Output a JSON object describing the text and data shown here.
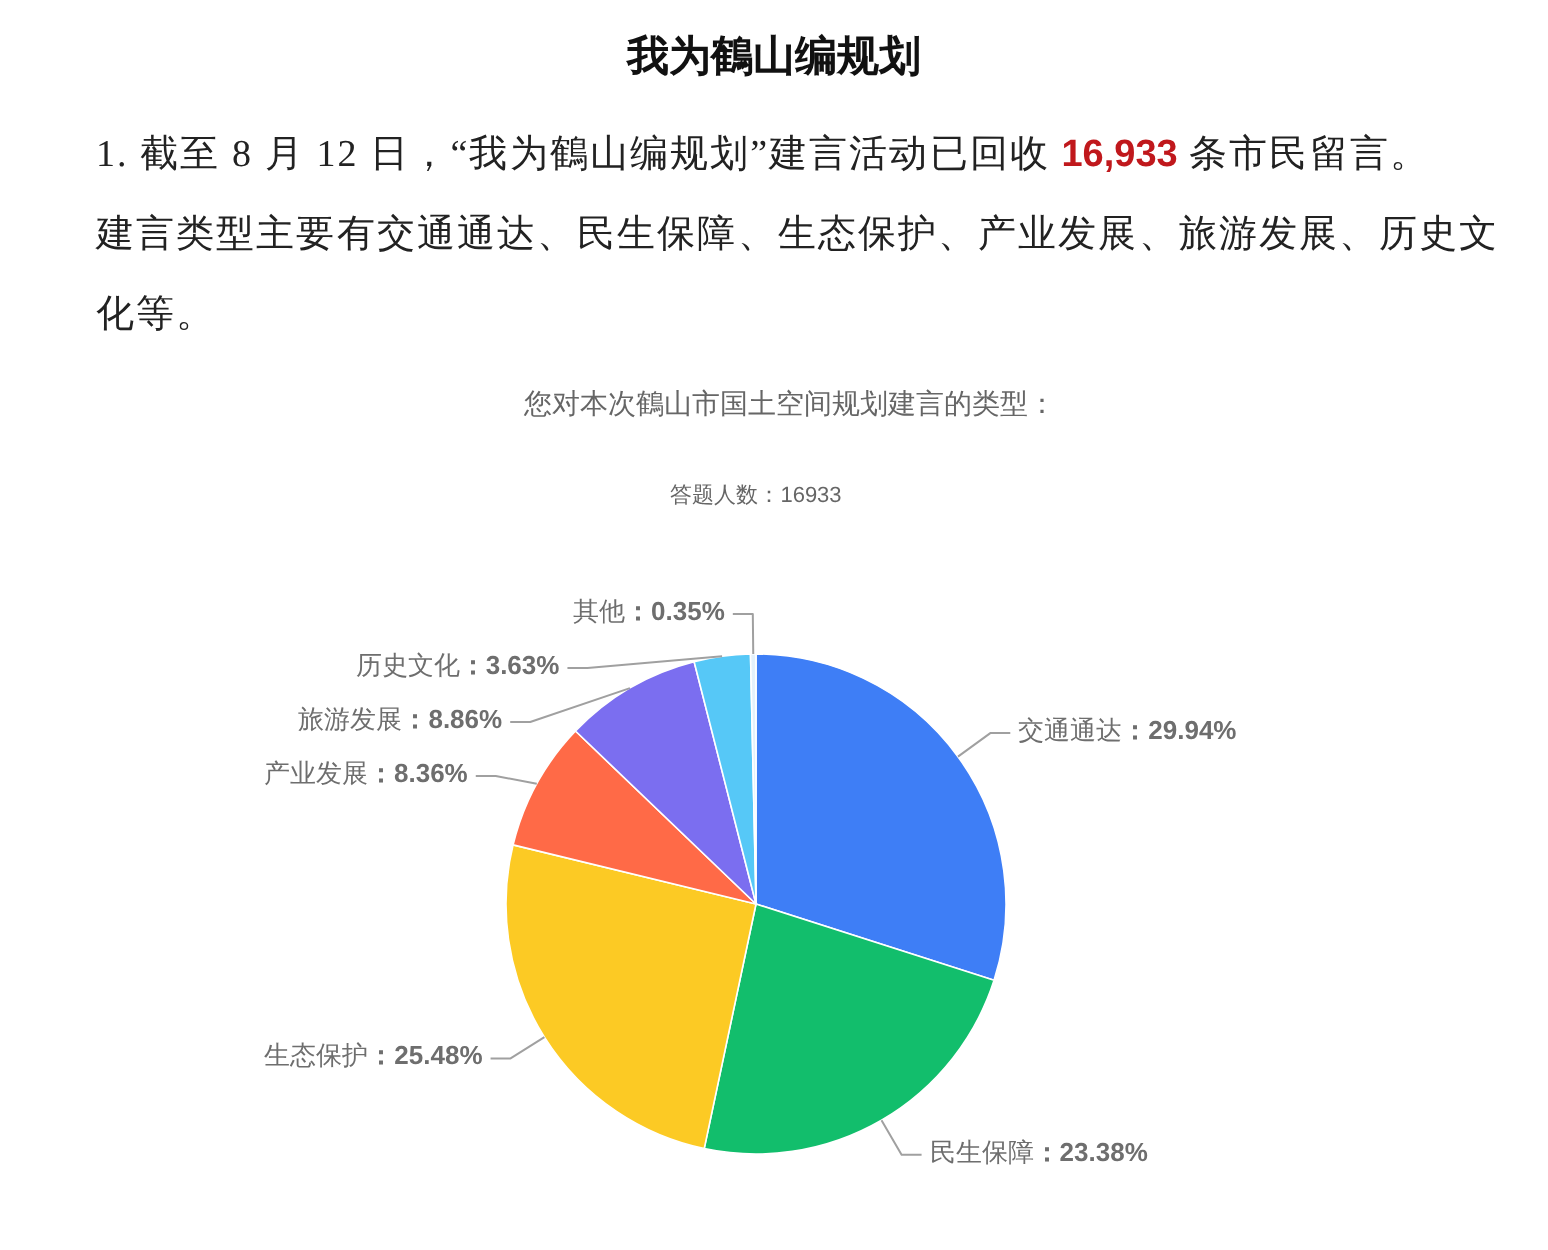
{
  "chart_data": {
    "type": "pie",
    "title": "我为鶴山编规划",
    "subtitle": "您对本次鶴山市国土空间规划建言的类型：",
    "categories": [
      "交通通达",
      "民生保障",
      "生态保护",
      "产业发展",
      "旅游发展",
      "历史文化",
      "其他"
    ],
    "values": [
      29.94,
      23.38,
      25.48,
      8.36,
      8.86,
      3.63,
      0.35
    ],
    "colors": [
      "#3e7ef6",
      "#12be6c",
      "#fcca24",
      "#ff6a47",
      "#7b6ef0",
      "#56c8f7",
      "#e3f1fb"
    ],
    "value_labels": [
      "：29.94%",
      "：23.38%",
      "：25.48%",
      "：8.36%",
      "：8.86%",
      "：3.63%",
      "：0.35%"
    ],
    "annotations": [
      "1. 截至 8 月 12 日，“我为鶴山编规划”建言活动已回收 ",
      "16,933",
      " 条市民留言。",
      "建言类型主要有交通通达、民生保障、生态保护、产业发展、旅游发展、历史文化等。",
      "答题人数：16933"
    ]
  }
}
